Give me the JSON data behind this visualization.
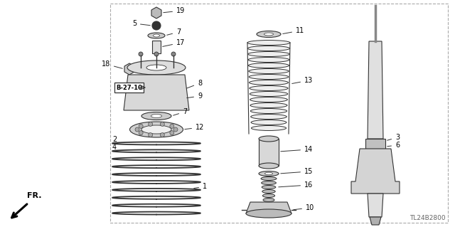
{
  "bg_color": "#ffffff",
  "border_color": "#999999",
  "line_color": "#333333",
  "part_color": "#cccccc",
  "dark_color": "#444444",
  "diagram_code": "TL24B2800",
  "ref_label": "B-27-10",
  "arrow_label": "FR."
}
